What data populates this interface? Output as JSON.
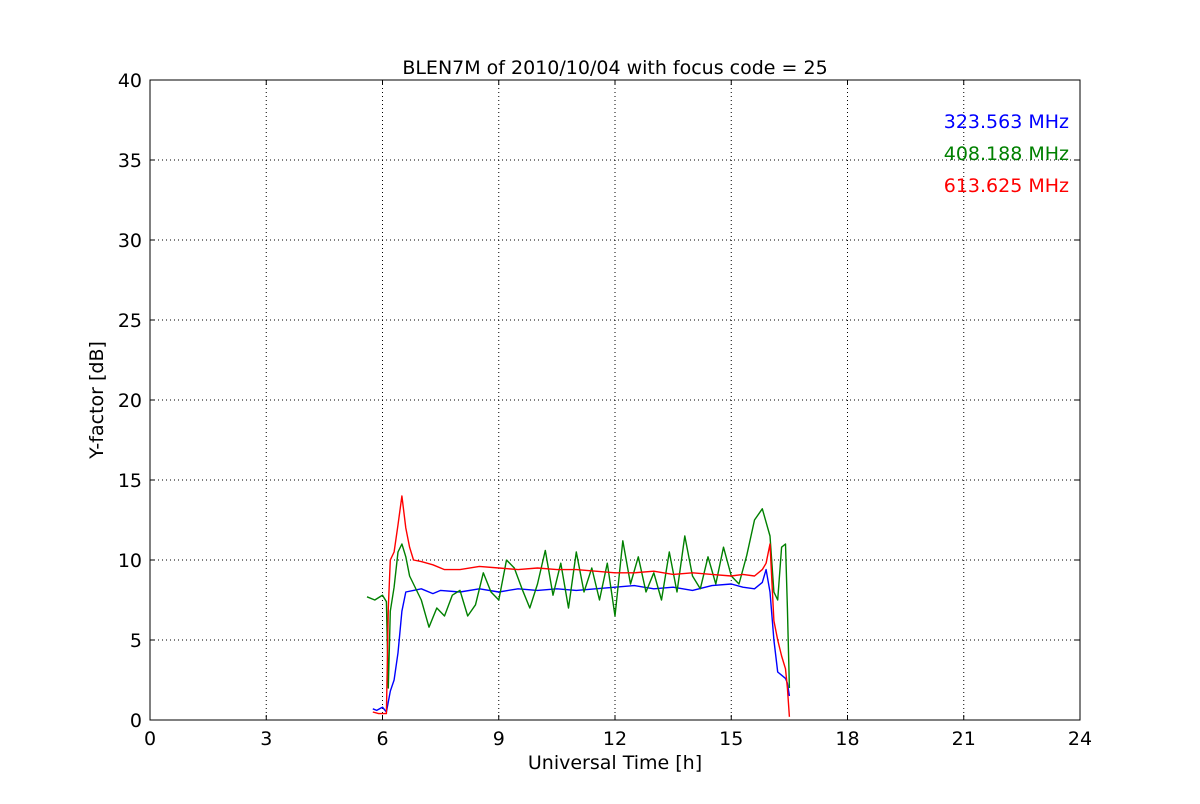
{
  "chart_data": {
    "type": "line",
    "title": "BLEN7M of 2010/10/04 with focus code = 25",
    "xlabel": "Universal Time [h]",
    "ylabel": "Y-factor [dB]",
    "xlim": [
      0,
      24
    ],
    "ylim": [
      0,
      40
    ],
    "xticks": [
      0,
      3,
      6,
      9,
      12,
      15,
      18,
      21,
      24
    ],
    "yticks": [
      0,
      5,
      10,
      15,
      20,
      25,
      30,
      35,
      40
    ],
    "grid": true,
    "legend_position": "top-right",
    "series": [
      {
        "name": "323.563 MHz",
        "color": "#0000ff",
        "x": [
          5.75,
          5.85,
          6.0,
          6.1,
          6.2,
          6.3,
          6.4,
          6.5,
          6.6,
          6.8,
          7.0,
          7.3,
          7.5,
          8.0,
          8.5,
          9.0,
          9.5,
          10.0,
          10.5,
          11.0,
          11.5,
          12.0,
          12.5,
          13.0,
          13.5,
          14.0,
          14.5,
          15.0,
          15.3,
          15.6,
          15.8,
          15.9,
          16.0,
          16.1,
          16.2,
          16.3,
          16.4,
          16.45,
          16.5
        ],
        "y": [
          0.7,
          0.6,
          0.8,
          0.5,
          1.8,
          2.5,
          4.2,
          6.8,
          8.0,
          8.1,
          8.2,
          7.9,
          8.1,
          8.0,
          8.2,
          8.0,
          8.2,
          8.1,
          8.2,
          8.1,
          8.2,
          8.3,
          8.4,
          8.2,
          8.3,
          8.1,
          8.4,
          8.5,
          8.3,
          8.2,
          8.6,
          9.4,
          8.0,
          5.0,
          3.0,
          2.8,
          2.6,
          2.3,
          1.5
        ]
      },
      {
        "name": "408.188 MHz",
        "color": "#008000",
        "x": [
          5.6,
          5.8,
          6.0,
          6.1,
          6.15,
          6.2,
          6.3,
          6.4,
          6.5,
          6.6,
          6.7,
          6.8,
          7.0,
          7.2,
          7.4,
          7.6,
          7.8,
          8.0,
          8.2,
          8.4,
          8.6,
          8.8,
          9.0,
          9.2,
          9.4,
          9.6,
          9.8,
          10.0,
          10.2,
          10.4,
          10.6,
          10.8,
          11.0,
          11.2,
          11.4,
          11.6,
          11.8,
          12.0,
          12.2,
          12.4,
          12.6,
          12.8,
          13.0,
          13.2,
          13.4,
          13.6,
          13.8,
          14.0,
          14.2,
          14.4,
          14.6,
          14.8,
          15.0,
          15.2,
          15.4,
          15.6,
          15.8,
          16.0,
          16.1,
          16.2,
          16.3,
          16.4,
          16.45,
          16.5
        ],
        "y": [
          7.7,
          7.5,
          7.8,
          7.4,
          2.0,
          6.8,
          8.3,
          10.5,
          11.0,
          10.2,
          9.0,
          8.5,
          7.5,
          5.8,
          7.0,
          6.5,
          7.8,
          8.1,
          6.5,
          7.2,
          9.2,
          8.0,
          7.5,
          10.0,
          9.5,
          8.2,
          7.0,
          8.5,
          10.6,
          7.8,
          9.8,
          7.0,
          10.5,
          8.0,
          9.5,
          7.5,
          9.8,
          6.5,
          11.2,
          8.5,
          10.2,
          8.0,
          9.2,
          7.5,
          10.5,
          8.0,
          11.5,
          9.0,
          8.2,
          10.2,
          8.5,
          10.8,
          9.0,
          8.5,
          10.3,
          12.5,
          13.2,
          11.5,
          8.0,
          7.5,
          10.8,
          11.0,
          7.0,
          2.0
        ]
      },
      {
        "name": "613.625 MHz",
        "color": "#ff0000",
        "x": [
          5.75,
          5.9,
          6.1,
          6.15,
          6.2,
          6.3,
          6.4,
          6.5,
          6.6,
          6.7,
          6.8,
          7.0,
          7.3,
          7.6,
          8.0,
          8.5,
          9.0,
          9.5,
          10.0,
          10.5,
          11.0,
          11.5,
          12.0,
          12.5,
          13.0,
          13.5,
          14.0,
          14.5,
          15.0,
          15.3,
          15.6,
          15.8,
          15.9,
          16.0,
          16.1,
          16.2,
          16.3,
          16.4,
          16.45,
          16.5
        ],
        "y": [
          0.5,
          0.4,
          0.4,
          7.0,
          10.0,
          10.5,
          12.2,
          14.0,
          12.0,
          10.8,
          10.0,
          9.9,
          9.7,
          9.4,
          9.4,
          9.6,
          9.5,
          9.4,
          9.5,
          9.4,
          9.4,
          9.3,
          9.2,
          9.2,
          9.3,
          9.1,
          9.2,
          9.1,
          9.0,
          9.1,
          9.0,
          9.4,
          9.8,
          11.0,
          6.2,
          5.0,
          4.0,
          3.2,
          2.0,
          0.2
        ]
      }
    ]
  }
}
